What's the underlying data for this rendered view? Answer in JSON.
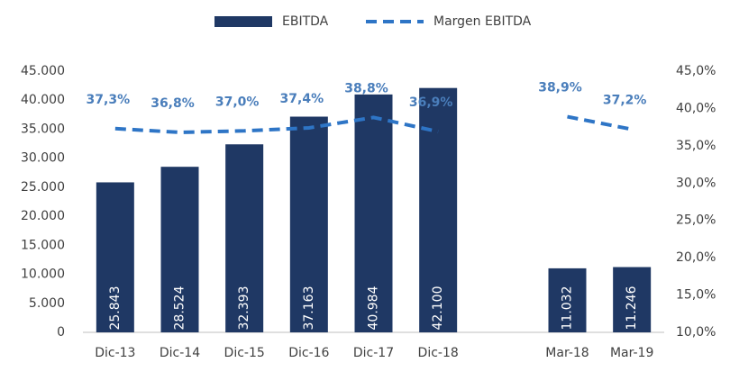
{
  "chart_data": {
    "type": "bar",
    "categories": [
      "Dic-13",
      "Dic-14",
      "Dic-15",
      "Dic-16",
      "Dic-17",
      "Dic-18",
      null,
      "Mar-18",
      "Mar-19"
    ],
    "series": [
      {
        "name": "EBITDA",
        "type": "bar",
        "color": "#1f3864",
        "values": [
          25843,
          28524,
          32393,
          37163,
          40984,
          42100,
          null,
          11032,
          11246
        ],
        "value_labels": [
          "25.843",
          "28.524",
          "32.393",
          "37.163",
          "40.984",
          "42.100",
          null,
          "11.032",
          "11.246"
        ]
      },
      {
        "name": "Margen EBITDA",
        "type": "line",
        "axis": "y2",
        "color": "#2e75c6",
        "values": [
          37.3,
          36.8,
          37.0,
          37.4,
          38.8,
          36.9,
          null,
          38.9,
          37.2
        ],
        "value_labels": [
          "37,3%",
          "36,8%",
          "37,0%",
          "37,4%",
          "38,8%",
          "36,9%",
          null,
          "38,9%",
          "37,2%"
        ]
      }
    ],
    "ylim": [
      0,
      45000
    ],
    "yticks": [
      0,
      {
        "value": 5000,
        "label": "5.000"
      },
      {
        "value": 10000,
        "label": "10.000"
      },
      {
        "value": 15000,
        "label": "15.000"
      },
      {
        "value": 20000,
        "label": "20.000"
      },
      {
        "value": 25000,
        "label": "25.000"
      },
      {
        "value": 30000,
        "label": "30.000"
      },
      {
        "value": 35000,
        "label": "35.000"
      },
      {
        "value": 40000,
        "label": "40.000"
      },
      {
        "value": 45000,
        "label": "45.000"
      }
    ],
    "y2lim": [
      10,
      45
    ],
    "y2ticks": [
      {
        "value": 10,
        "label": "10,0%"
      },
      {
        "value": 15,
        "label": "15,0%"
      },
      {
        "value": 20,
        "label": "20,0%"
      },
      {
        "value": 25,
        "label": "25,0%"
      },
      {
        "value": 30,
        "label": "30,0%"
      },
      {
        "value": 35,
        "label": "35,0%"
      },
      {
        "value": 40,
        "label": "40,0%"
      },
      {
        "value": 45,
        "label": "45,0%"
      }
    ],
    "legend": "top"
  }
}
